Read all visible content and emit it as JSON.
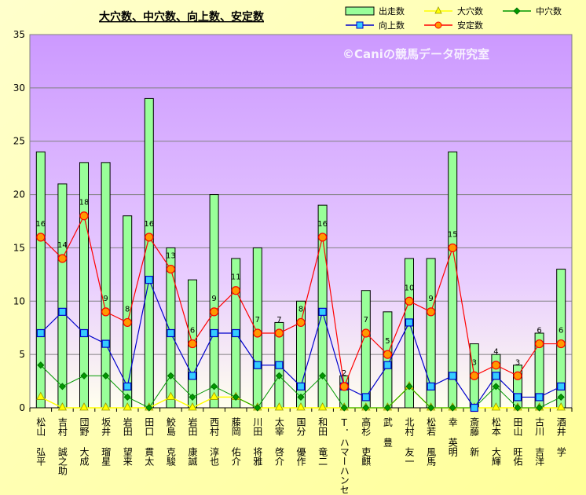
{
  "chart_data": {
    "type": "bar",
    "title": "大穴数、中穴数、向上数、安定数",
    "watermark": "©Caniの競馬データ研究室",
    "ylim": [
      0,
      35
    ],
    "yticks": [
      0,
      5,
      10,
      15,
      20,
      25,
      30,
      35
    ],
    "grid": true,
    "legend_position": "top-right",
    "colors": {
      "bar_fill": "#99ff99",
      "bar_stroke": "#000000",
      "bg_top": "#cc99ff",
      "bg_bottom": "#ffffee",
      "oana": "#ffff00",
      "chuana": "#009900",
      "kojo": "#0000cc",
      "antei": "#ff0000",
      "antei_marker": "#ff9900",
      "kojo_marker": "#33ccff"
    },
    "categories": [
      "松山 弘平",
      "吉村 誠之助",
      "団野 大成",
      "坂井 瑠星",
      "岩田 望来",
      "田口 貫太",
      "鮫島 克駿",
      "岩田 康誠",
      "西村 淳也",
      "藤岡 佑介",
      "川田 将雅",
      "太宰 啓介",
      "国分 優作",
      "和田 竜二",
      "T．ハマーハンセン",
      "高杉 吏麒",
      "武 豊",
      "北村 友一",
      "松若 風馬",
      "幸 英明",
      "斎藤 新",
      "松本 大輝",
      "田山 旺佑",
      "古川 吉洋",
      "酒井 学"
    ],
    "series": [
      {
        "name": "出走数",
        "type": "bar",
        "values": [
          24,
          21,
          23,
          23,
          18,
          29,
          15,
          12,
          20,
          14,
          15,
          8,
          10,
          19,
          3,
          11,
          9,
          14,
          14,
          24,
          6,
          5,
          4,
          7,
          13
        ]
      },
      {
        "name": "大穴数",
        "type": "line",
        "values": [
          1,
          0,
          0,
          0,
          0,
          0,
          1,
          0,
          1,
          1,
          0,
          0,
          0,
          0,
          0,
          0,
          0,
          2,
          0,
          0,
          0,
          0,
          0,
          0,
          0
        ]
      },
      {
        "name": "中穴数",
        "type": "line",
        "values": [
          4,
          2,
          3,
          3,
          1,
          0,
          3,
          1,
          2,
          1,
          0,
          3,
          1,
          3,
          0,
          0,
          0,
          2,
          0,
          0,
          0,
          2,
          0,
          0,
          1
        ]
      },
      {
        "name": "向上数",
        "type": "line",
        "values": [
          7,
          9,
          7,
          6,
          2,
          12,
          7,
          3,
          7,
          7,
          4,
          4,
          2,
          9,
          2,
          1,
          4,
          8,
          2,
          3,
          0,
          3,
          1,
          1,
          2
        ]
      },
      {
        "name": "安定数",
        "type": "line",
        "values": [
          16,
          14,
          18,
          9,
          8,
          16,
          13,
          6,
          9,
          11,
          7,
          7,
          8,
          16,
          2,
          7,
          5,
          10,
          9,
          15,
          3,
          4,
          3,
          6,
          6
        ],
        "labels": [
          16,
          14,
          18,
          9,
          8,
          16,
          13,
          6,
          9,
          11,
          7,
          7,
          8,
          16,
          2,
          7,
          5,
          10,
          9,
          15,
          3,
          4,
          3,
          6,
          6
        ]
      }
    ]
  }
}
